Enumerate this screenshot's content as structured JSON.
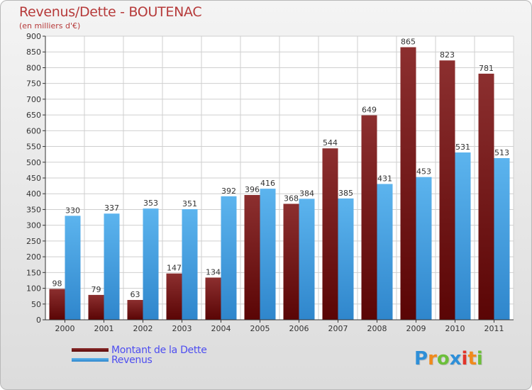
{
  "header": {
    "title": "Revenus/Dette - BOUTENAC",
    "subtitle": "(en milliers d'€)"
  },
  "logo": {
    "text": "Proxiti",
    "letters": [
      "P",
      "r",
      "o",
      "x",
      "i",
      "t",
      "i"
    ],
    "colors": [
      "#2e8fd8",
      "#f08a1c",
      "#6cbf3a",
      "#2e8fd8",
      "#e2342a",
      "#f08a1c",
      "#6cbf3a"
    ]
  },
  "chart_data": {
    "type": "bar",
    "categories": [
      "2000",
      "2001",
      "2002",
      "2003",
      "2004",
      "2005",
      "2006",
      "2007",
      "2008",
      "2009",
      "2010",
      "2011"
    ],
    "series": [
      {
        "name": "Montant de la Dette",
        "color": "#7a1a1a",
        "values": [
          98,
          79,
          63,
          147,
          134,
          396,
          368,
          544,
          649,
          865,
          823,
          781
        ]
      },
      {
        "name": "Revenus",
        "color": "#4ea8e6",
        "values": [
          330,
          337,
          353,
          351,
          392,
          416,
          384,
          385,
          431,
          453,
          531,
          513
        ]
      }
    ],
    "ylim": [
      0,
      900
    ],
    "ytick_step": 50,
    "grid": true,
    "legend_position": "bottom-left"
  }
}
